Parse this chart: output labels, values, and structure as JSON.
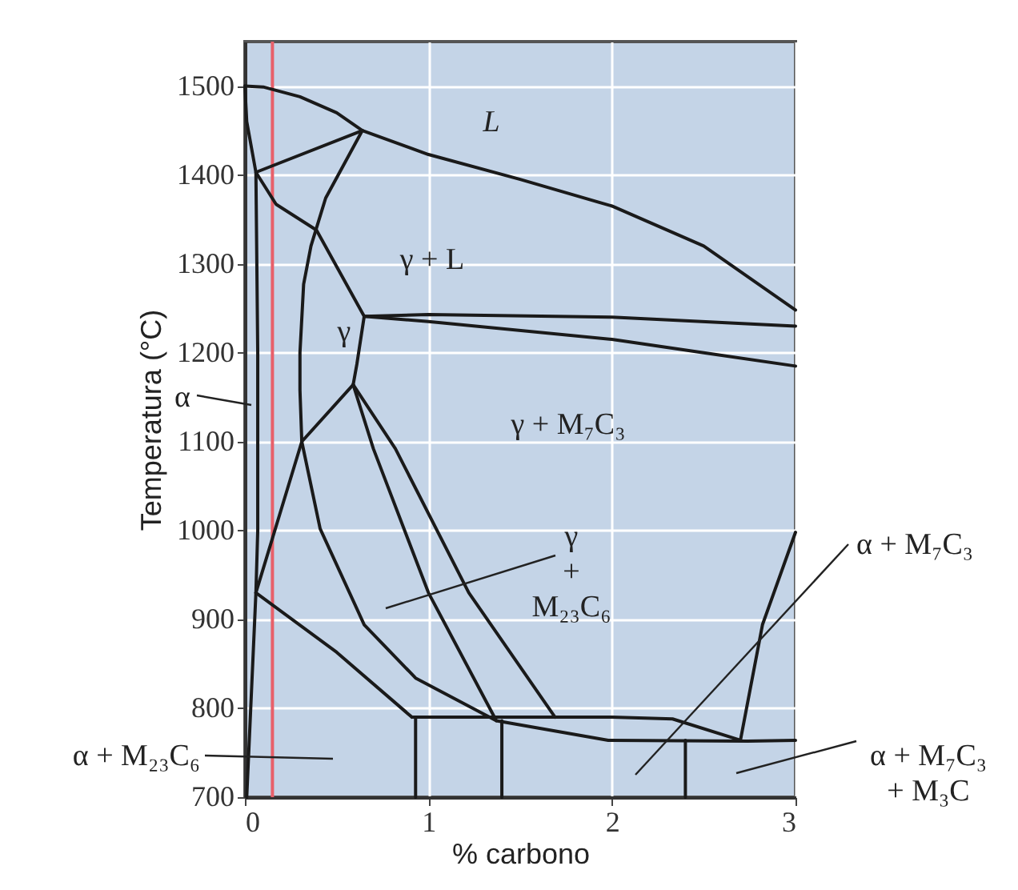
{
  "chart_data": {
    "type": "line",
    "xlabel": "% carbono",
    "ylabel": "Temperatura (°C)",
    "xlim": [
      0,
      3
    ],
    "ylim": [
      700,
      1550
    ],
    "xticks": [
      0,
      1,
      2,
      3
    ],
    "yticks": [
      700,
      800,
      900,
      1000,
      1100,
      1200,
      1300,
      1400,
      1500
    ],
    "grid": true,
    "marker": "none",
    "line_style": "solid",
    "series": [
      {
        "color": "#1a1a1a",
        "x": [
          0,
          0.1,
          0.3,
          0.5,
          0.64,
          1,
          1.5,
          2,
          2.5,
          3
        ],
        "values": [
          1500,
          1499,
          1488,
          1470,
          1450,
          1423,
          1395,
          1365,
          1320,
          1248
        ]
      },
      {
        "color": "#1a1a1a",
        "x": [
          0.06,
          0.64
        ],
        "values": [
          1403,
          1450
        ]
      },
      {
        "color": "#1a1a1a",
        "x": [
          0,
          0.01,
          0.06,
          0.17,
          0.39,
          0.65
        ],
        "values": [
          1500,
          1460,
          1403,
          1367,
          1338,
          1241
        ]
      },
      {
        "color": "#1a1a1a",
        "x": [
          0.64,
          0.44,
          0.36,
          0.32,
          0.3,
          0.3,
          0.31,
          0.06
        ],
        "values": [
          1450,
          1374,
          1320,
          1277,
          1200,
          1158,
          1100,
          930
        ]
      },
      {
        "color": "#1a1a1a",
        "x": [
          0.06,
          0.07,
          0.07,
          0.06,
          0.01
        ],
        "values": [
          1403,
          1200,
          1000,
          930,
          700
        ]
      },
      {
        "color": "#1a1a1a",
        "x": [
          0.31,
          0.59
        ],
        "values": [
          1100,
          1164
        ]
      },
      {
        "color": "#1a1a1a",
        "x": [
          0.65,
          0.61,
          0.59
        ],
        "values": [
          1241,
          1187,
          1164
        ]
      },
      {
        "color": "#1a1a1a",
        "x": [
          0.65,
          1,
          2,
          3
        ],
        "values": [
          1241,
          1243,
          1240,
          1230
        ]
      },
      {
        "color": "#1a1a1a",
        "x": [
          0.65,
          1,
          2,
          2.5,
          3
        ],
        "values": [
          1241,
          1235,
          1215,
          1200,
          1185
        ]
      },
      {
        "color": "#1a1a1a",
        "x": [
          0.59,
          0.7,
          1,
          1.37
        ],
        "values": [
          1164,
          1092,
          930,
          786
        ]
      },
      {
        "color": "#1a1a1a",
        "x": [
          0.59,
          0.82,
          1.22,
          1.69
        ],
        "values": [
          1164,
          1092,
          930,
          790
        ]
      },
      {
        "color": "#1a1a1a",
        "x": [
          0.31,
          0.41,
          0.65,
          0.93,
          1.37,
          1.98,
          2.74,
          3
        ],
        "values": [
          1100,
          1002,
          894,
          834,
          786,
          764,
          763,
          764
        ]
      },
      {
        "color": "#1a1a1a",
        "x": [
          0.06,
          0.5,
          0.91
        ],
        "values": [
          930,
          863,
          790
        ]
      },
      {
        "color": "#1a1a1a",
        "x": [
          0.91,
          1.37,
          2,
          2.33,
          2.7
        ],
        "values": [
          790,
          790,
          790,
          788,
          764
        ]
      },
      {
        "color": "#1a1a1a",
        "x": [
          0.93,
          0.93
        ],
        "values": [
          790,
          700
        ]
      },
      {
        "color": "#1a1a1a",
        "x": [
          1.4,
          1.4
        ],
        "values": [
          786,
          700
        ]
      },
      {
        "color": "#1a1a1a",
        "x": [
          2.4,
          2.4
        ],
        "values": [
          764,
          700
        ]
      },
      {
        "color": "#1a1a1a",
        "x": [
          2.7,
          2.82,
          3
        ],
        "values": [
          764,
          894,
          998
        ]
      }
    ],
    "ref_lines": [
      {
        "axis": "x",
        "value": 0.15,
        "color": "#e8606a"
      }
    ],
    "annotations": [
      "L",
      "γ + L",
      "γ",
      "γ + M₇C₃",
      "γ\n+\nM₂₃C₆",
      "α",
      "α + M₂₃C₆",
      "α + M₇C₃",
      "α + M₇C₃\n+ M₃C"
    ]
  }
}
